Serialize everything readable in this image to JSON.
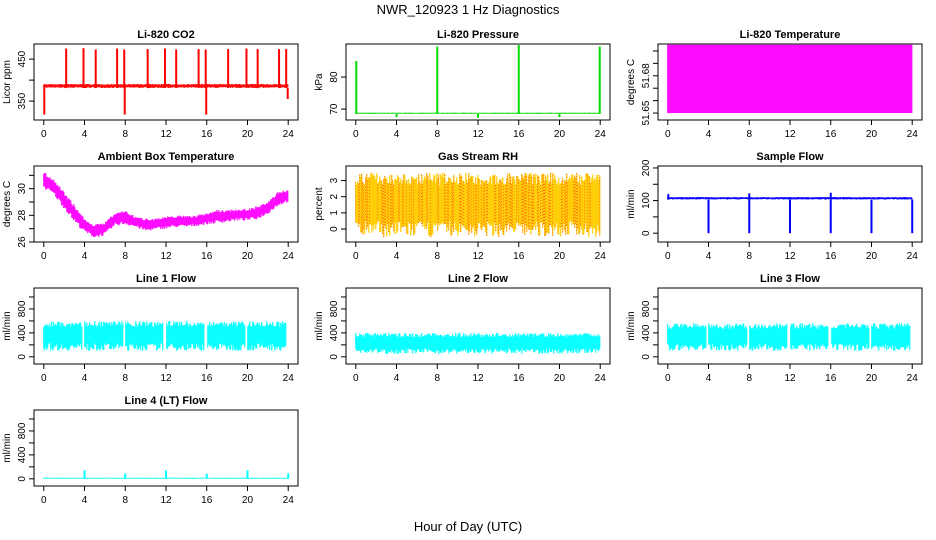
{
  "title": "NWR_120923 1 Hz Diagnostics",
  "xlabel": "Hour of Day (UTC)",
  "chart_data": [
    {
      "type": "line",
      "title": "Li-820 CO2",
      "ylabel": "Licor ppm",
      "color": "#ff0000",
      "xlim": [
        0,
        24
      ],
      "ylim": [
        305,
        486
      ],
      "xticks": [
        0,
        4,
        8,
        12,
        16,
        20,
        24
      ],
      "yticks": [
        350,
        400,
        450
      ],
      "ytick_labels": [
        "350",
        "",
        "450"
      ],
      "band": {
        "x": [
          0,
          24
        ],
        "low": [
          381,
          381
        ],
        "high": [
          391,
          391
        ]
      },
      "spikes": [
        [
          2.2,
          475
        ],
        [
          3.9,
          476
        ],
        [
          5.1,
          473
        ],
        [
          7.2,
          475
        ],
        [
          7.9,
          473
        ],
        [
          10.2,
          474
        ],
        [
          11.9,
          475
        ],
        [
          13.0,
          473
        ],
        [
          15.2,
          474
        ],
        [
          15.9,
          473
        ],
        [
          18.1,
          474
        ],
        [
          19.9,
          475
        ],
        [
          21.0,
          474
        ],
        [
          23.1,
          474
        ],
        [
          23.8,
          474
        ],
        [
          0.05,
          318
        ],
        [
          7.95,
          318
        ],
        [
          15.95,
          318
        ],
        [
          23.95,
          355
        ]
      ]
    },
    {
      "type": "line",
      "title": "Li-820 Pressure",
      "ylabel": "kPa",
      "color": "#00dd00",
      "xlim": [
        0,
        24
      ],
      "ylim": [
        66.6,
        90.3
      ],
      "xticks": [
        0,
        4,
        8,
        12,
        16,
        20,
        24
      ],
      "yticks": [
        70,
        80
      ],
      "ytick_labels": [
        "70",
        "80"
      ],
      "band": {
        "x": [
          0,
          24
        ],
        "low": [
          68.5,
          68.5
        ],
        "high": [
          68.9,
          68.9
        ]
      },
      "spikes": [
        [
          0.05,
          85
        ],
        [
          8,
          89.5
        ],
        [
          16,
          90
        ],
        [
          23.95,
          89.5
        ],
        [
          4,
          67.5
        ],
        [
          12,
          67.3
        ],
        [
          20,
          67.5
        ]
      ]
    },
    {
      "type": "area",
      "title": "Li-820 Temperature",
      "ylabel": "degrees C",
      "color": "#ff00ff",
      "xlim": [
        0,
        24
      ],
      "ylim": [
        51.6444,
        51.7056
      ],
      "xticks": [
        0,
        4,
        8,
        12,
        16,
        20,
        24
      ],
      "yticks": [
        51.65,
        51.66,
        51.67,
        51.68,
        51.69,
        51.7
      ],
      "ytick_labels": [
        "51.65",
        "",
        "",
        "51.68",
        "",
        ""
      ],
      "band": {
        "x": [
          0,
          24
        ],
        "low": [
          51.65,
          51.65
        ],
        "high": [
          51.705,
          51.705
        ]
      },
      "spikes": []
    },
    {
      "type": "line",
      "title": "Ambient Box Temperature",
      "ylabel": "degrees C",
      "color": "#ff00ff",
      "xlim": [
        0,
        24
      ],
      "ylim": [
        26,
        31.7
      ],
      "xticks": [
        0,
        4,
        8,
        12,
        16,
        20,
        24
      ],
      "yticks": [
        26,
        27,
        28,
        29,
        30,
        31
      ],
      "ytick_labels": [
        "26",
        "",
        "28",
        "",
        "30",
        ""
      ],
      "band": {
        "x": [
          0,
          1,
          2,
          3,
          4,
          5,
          6,
          7,
          8,
          9,
          10,
          11,
          12,
          13,
          14,
          15,
          16,
          17,
          18,
          19,
          20,
          21,
          22,
          23,
          24
        ],
        "low": [
          30,
          29.5,
          28.5,
          27.5,
          26.7,
          26.3,
          26.5,
          27.2,
          27.3,
          27.1,
          26.8,
          26.9,
          27,
          27.1,
          27.1,
          27.2,
          27.3,
          27.4,
          27.5,
          27.6,
          27.6,
          27.7,
          28.1,
          28.7,
          29
        ],
        "high": [
          31.3,
          30.7,
          29.8,
          28.8,
          27.8,
          27.3,
          27.5,
          28.2,
          28.4,
          27.9,
          27.8,
          27.8,
          27.9,
          28,
          28,
          28,
          28.2,
          28.4,
          28.4,
          28.5,
          28.5,
          28.7,
          29,
          29.8,
          29.9
        ]
      },
      "spikes": []
    },
    {
      "type": "line",
      "title": "Gas Stream RH",
      "ylabel": "percent",
      "color": "#ffcc00",
      "color2": "#ff2200",
      "xlim": [
        0,
        24
      ],
      "ylim": [
        -0.8,
        3.9
      ],
      "xticks": [
        0,
        4,
        8,
        12,
        16,
        20,
        24
      ],
      "yticks": [
        0,
        1,
        2,
        3
      ],
      "ytick_labels": [
        "0",
        "1",
        "2",
        "3"
      ],
      "band": {
        "x": [
          0,
          24
        ],
        "low": [
          -0.5,
          -0.5
        ],
        "high": [
          3.5,
          3.5
        ]
      },
      "spikes": []
    },
    {
      "type": "line",
      "title": "Sample Flow",
      "ylabel": "ml/min",
      "color": "#0000ff",
      "xlim": [
        0,
        24
      ],
      "ylim": [
        -27,
        206
      ],
      "xticks": [
        0,
        4,
        8,
        12,
        16,
        20,
        24
      ],
      "yticks": [
        0,
        50,
        100,
        150,
        200
      ],
      "ytick_labels": [
        "0",
        "",
        "100",
        "",
        "200"
      ],
      "band": {
        "x": [
          0,
          24
        ],
        "low": [
          103,
          103
        ],
        "high": [
          111,
          111
        ]
      },
      "spikes": [
        [
          0.05,
          120
        ],
        [
          4,
          0
        ],
        [
          8,
          0
        ],
        [
          12,
          0
        ],
        [
          16,
          0
        ],
        [
          20,
          0
        ],
        [
          24,
          0
        ],
        [
          8,
          122
        ],
        [
          16,
          124
        ]
      ]
    },
    {
      "type": "line",
      "title": "Line 1 Flow",
      "ylabel": "ml/min",
      "color": "#00ffff",
      "xlim": [
        0,
        24
      ],
      "ylim": [
        -120,
        1150
      ],
      "xticks": [
        0,
        4,
        8,
        12,
        16,
        20,
        24
      ],
      "yticks": [
        0,
        200,
        400,
        600,
        800,
        1000
      ],
      "ytick_labels": [
        "0",
        "",
        "400",
        "",
        "800",
        ""
      ],
      "band": {
        "x": [
          0,
          24
        ],
        "low": [
          100,
          100
        ],
        "high": [
          600,
          600
        ]
      },
      "gaps": [
        3.9,
        7.9,
        11.9,
        15.9,
        19.9,
        23.9
      ],
      "spikes": []
    },
    {
      "type": "line",
      "title": "Line 2 Flow",
      "ylabel": "ml/min",
      "color": "#00ffff",
      "xlim": [
        0,
        24
      ],
      "ylim": [
        -120,
        1150
      ],
      "xticks": [
        0,
        4,
        8,
        12,
        16,
        20,
        24
      ],
      "yticks": [
        0,
        200,
        400,
        600,
        800,
        1000
      ],
      "ytick_labels": [
        "0",
        "",
        "400",
        "",
        "800",
        ""
      ],
      "band": {
        "x": [
          0,
          24
        ],
        "low": [
          50,
          50
        ],
        "high": [
          400,
          400
        ]
      },
      "spikes": []
    },
    {
      "type": "line",
      "title": "Line 3 Flow",
      "ylabel": "ml/min",
      "color": "#00ffff",
      "xlim": [
        0,
        24
      ],
      "ylim": [
        -120,
        1150
      ],
      "xticks": [
        0,
        4,
        8,
        12,
        16,
        20,
        24
      ],
      "yticks": [
        0,
        200,
        400,
        600,
        800,
        1000
      ],
      "ytick_labels": [
        "0",
        "",
        "400",
        "",
        "800",
        ""
      ],
      "band": {
        "x": [
          0,
          24
        ],
        "low": [
          100,
          100
        ],
        "high": [
          560,
          560
        ]
      },
      "gaps": [
        3.9,
        7.9,
        11.9,
        15.9,
        19.9,
        23.9
      ],
      "spikes": []
    },
    {
      "type": "line",
      "title": "Line 4 (LT) Flow",
      "ylabel": "ml/min",
      "color": "#00ffff",
      "xlim": [
        0,
        24
      ],
      "ylim": [
        -120,
        1150
      ],
      "xticks": [
        0,
        4,
        8,
        12,
        16,
        20,
        24
      ],
      "yticks": [
        0,
        200,
        400,
        600,
        800,
        1000
      ],
      "ytick_labels": [
        "0",
        "",
        "400",
        "",
        "800",
        ""
      ],
      "band": {
        "x": [
          0,
          24
        ],
        "low": [
          0,
          0
        ],
        "high": [
          20,
          20
        ]
      },
      "spikes": [
        [
          4,
          140
        ],
        [
          8,
          90
        ],
        [
          12,
          140
        ],
        [
          16,
          85
        ],
        [
          20,
          140
        ],
        [
          24,
          90
        ]
      ]
    }
  ]
}
